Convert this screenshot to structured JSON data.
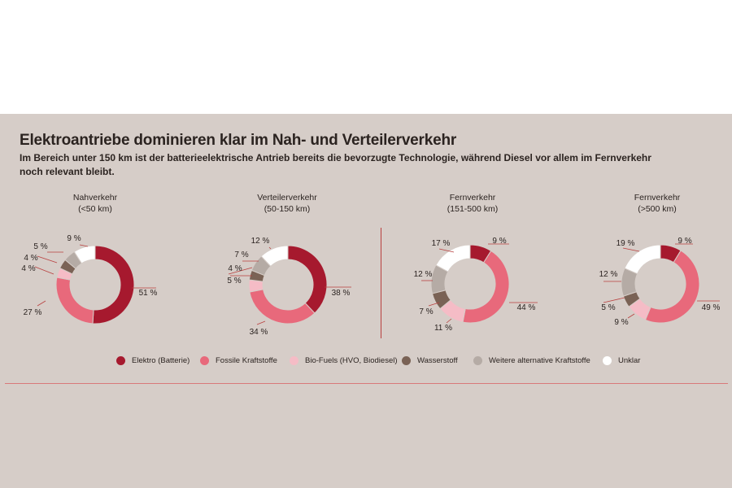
{
  "title": "Elektroantriebe dominieren klar im Nah- und Verteilerverkehr",
  "subtitle": "Im Bereich unter 150 km ist der batterieelektrische Antrieb bereits die bevorzugte Technologie, während Diesel vor allem im Fernverkehr noch relevant bleibt.",
  "colors": {
    "background": "#d6cdc8",
    "elektro": "#a6192e",
    "fossil": "#e8697b",
    "biofuels": "#f5bcc6",
    "wasserstoff": "#7a6255",
    "weitere": "#b5aba5",
    "unklar": "#ffffff",
    "leader": "#b9403f"
  },
  "legend": [
    {
      "label": "Elektro (Batterie)",
      "color": "#a6192e"
    },
    {
      "label": "Fossile Kraftstoffe",
      "color": "#e8697b"
    },
    {
      "label": "Bio-Fuels (HVO, Biodiesel)",
      "color": "#f5bcc6"
    },
    {
      "label": "Wasserstoff",
      "color": "#7a6255"
    },
    {
      "label": "Weitere alternative Kraftstoffe",
      "color": "#b5aba5"
    },
    {
      "label": "Unklar",
      "color": "#ffffff"
    }
  ],
  "chart_data": [
    {
      "type": "pie",
      "title": "Nahverkehr",
      "subtitle": "(<50 km)",
      "categories": [
        "Elektro (Batterie)",
        "Fossile Kraftstoffe",
        "Bio-Fuels (HVO, Biodiesel)",
        "Wasserstoff",
        "Weitere alternative Kraftstoffe",
        "Unklar"
      ],
      "values": [
        51,
        27,
        4,
        4,
        5,
        9
      ],
      "labels": [
        "51 %",
        "27 %",
        "4 %",
        "4 %",
        "5 %",
        "9 %"
      ]
    },
    {
      "type": "pie",
      "title": "Verteilerverkehr",
      "subtitle": "(50-150 km)",
      "categories": [
        "Elektro (Batterie)",
        "Fossile Kraftstoffe",
        "Bio-Fuels (HVO, Biodiesel)",
        "Wasserstoff",
        "Weitere alternative Kraftstoffe",
        "Unklar"
      ],
      "values": [
        38,
        34,
        5,
        4,
        7,
        12
      ],
      "labels": [
        "38 %",
        "34 %",
        "5 %",
        "4 %",
        "7 %",
        "12 %"
      ]
    },
    {
      "type": "pie",
      "title": "Fernverkehr",
      "subtitle": "(151-500 km)",
      "categories": [
        "Elektro (Batterie)",
        "Fossile Kraftstoffe",
        "Bio-Fuels (HVO, Biodiesel)",
        "Wasserstoff",
        "Weitere alternative Kraftstoffe",
        "Unklar"
      ],
      "values": [
        9,
        44,
        11,
        7,
        12,
        17
      ],
      "labels": [
        "9 %",
        "44 %",
        "11 %",
        "7 %",
        "12 %",
        "17 %"
      ]
    },
    {
      "type": "pie",
      "title": "Fernverkehr",
      "subtitle": "(>500 km)",
      "categories": [
        "Elektro (Batterie)",
        "Fossile Kraftstoffe",
        "Bio-Fuels (HVO, Biodiesel)",
        "Wasserstoff",
        "Weitere alternative Kraftstoffe",
        "Unklar"
      ],
      "values": [
        9,
        49,
        9,
        5,
        12,
        19
      ],
      "labels": [
        "9 %",
        "49 %",
        "9 %",
        "5 %",
        "12 %",
        "19 %"
      ]
    }
  ]
}
